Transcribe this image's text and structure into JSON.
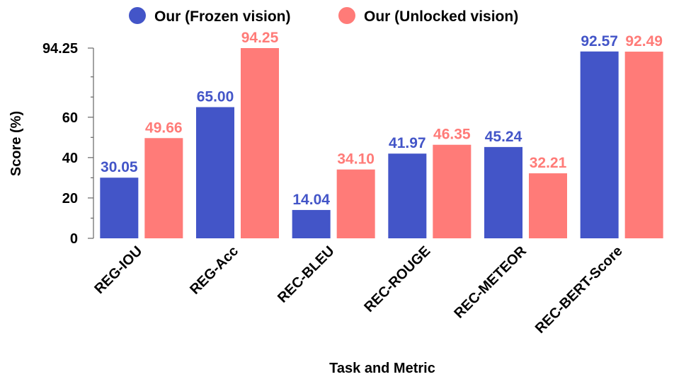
{
  "chart_data": {
    "type": "bar",
    "title": "",
    "xlabel": "Task and Metric",
    "ylabel": "Score (%)",
    "categories": [
      "REG-IOU",
      "REG-Acc",
      "REC-BLEU",
      "REC-ROUGE",
      "REC-METEOR",
      "REC-BERT-Score"
    ],
    "series": [
      {
        "name": "Our (Frozen vision)",
        "color": "#4355c8",
        "values": [
          30.05,
          65.0,
          14.04,
          41.97,
          45.24,
          92.57
        ],
        "labels": [
          "30.05",
          "65.00",
          "14.04",
          "41.97",
          "45.24",
          "92.57"
        ]
      },
      {
        "name": "Our (Unlocked vision)",
        "color": "#ff7b78",
        "values": [
          49.66,
          94.25,
          34.1,
          46.35,
          32.21,
          92.49
        ],
        "labels": [
          "49.66",
          "94.25",
          "34.10",
          "46.35",
          "32.21",
          "92.49"
        ]
      }
    ],
    "ylim": [
      0,
      94.25
    ],
    "yticks": [
      0,
      20,
      40,
      60,
      94.25
    ],
    "ytick_labels": [
      "0",
      "20",
      "40",
      "60",
      "94.25"
    ],
    "minor_yticks": [
      10,
      30,
      50,
      70,
      80
    ],
    "grid": false,
    "legend_position": "top"
  }
}
